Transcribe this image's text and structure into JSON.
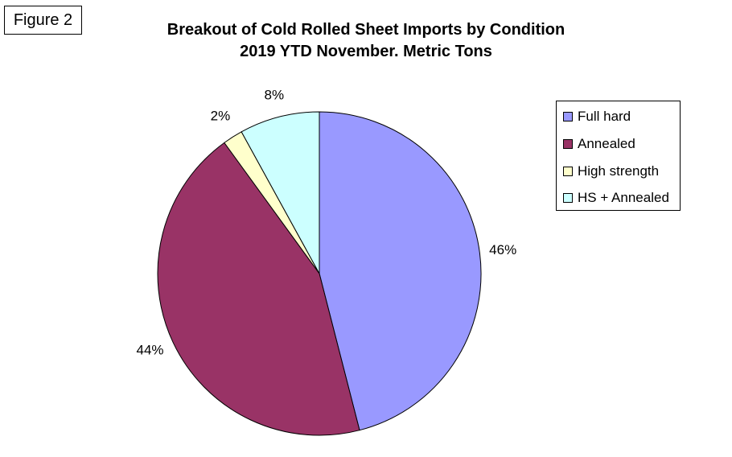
{
  "figure_label": "Figure 2",
  "chart_data": {
    "type": "pie",
    "title": "Breakout of Cold Rolled Sheet Imports by Condition",
    "subtitle": "2019 YTD November. Metric Tons",
    "categories": [
      "Full hard",
      "Annealed",
      "High strength",
      "HS + Annealed"
    ],
    "values": [
      46,
      44,
      2,
      8
    ],
    "data_labels": [
      "46%",
      "44%",
      "2%",
      "8%"
    ],
    "colors": [
      "#9999ff",
      "#993366",
      "#ffffcc",
      "#ccffff"
    ],
    "legend_position": "top-right",
    "start_angle": "12 o'clock",
    "direction": "clockwise"
  }
}
